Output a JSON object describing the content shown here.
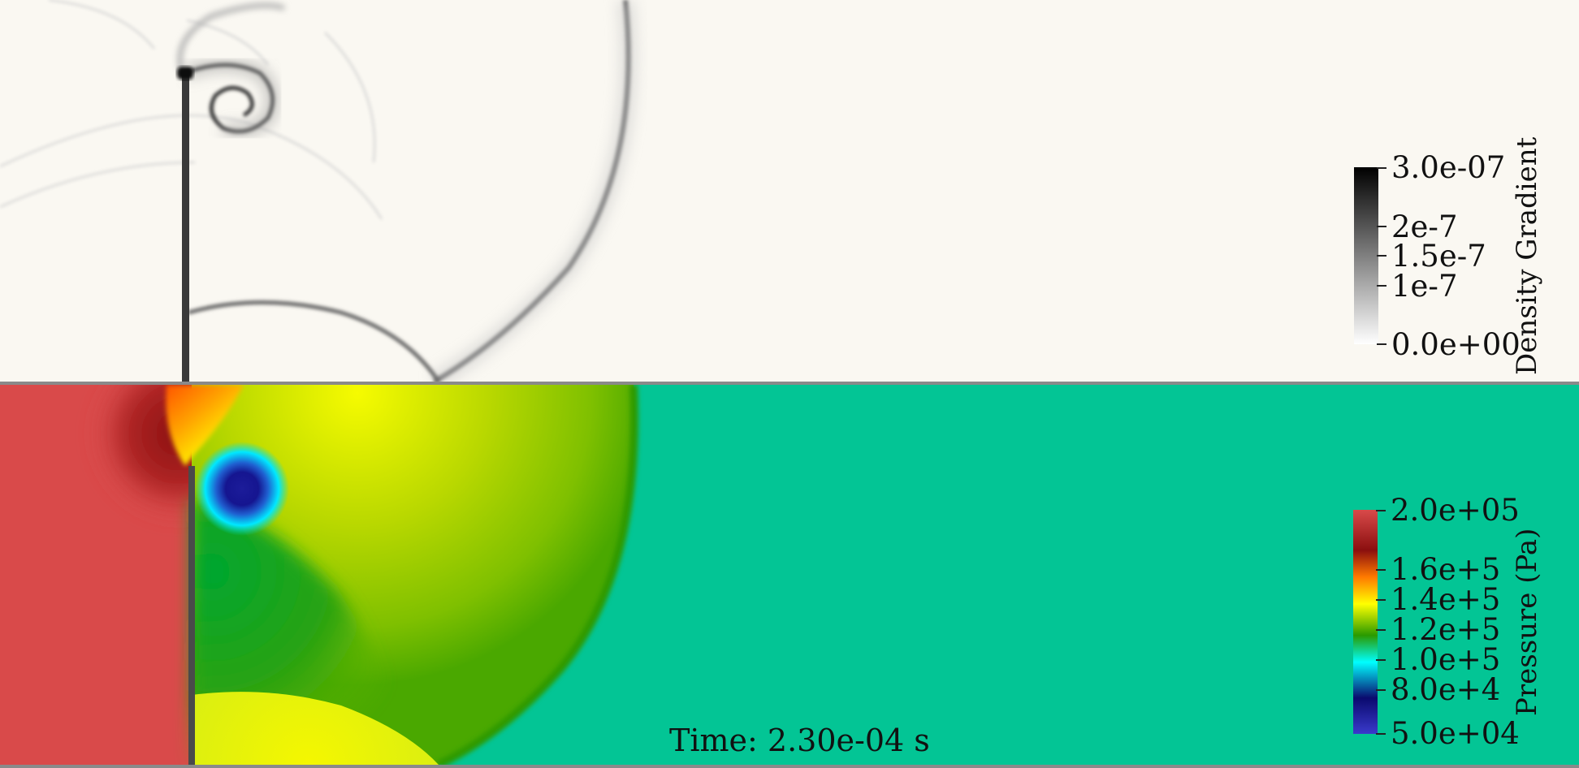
{
  "density_colorbar": {
    "title": "Density Gradient",
    "ticks": [
      "3.0e-07",
      "2e-7",
      "1.5e-7",
      "1e-7",
      "0.0e+00"
    ],
    "range": [
      0.0,
      3e-07
    ],
    "colormap": [
      "#000000",
      "#ffffff"
    ]
  },
  "pressure_colorbar": {
    "title": "Pressure (Pa)",
    "ticks": [
      "2.0e+05",
      "1.6e+5",
      "1.4e+5",
      "1.2e+5",
      "1.0e+5",
      "8.0e+4",
      "5.0e+04"
    ],
    "range": [
      50000,
      200000
    ],
    "colormap": [
      "#d94a4a",
      "#8b0f0f",
      "#ff7a00",
      "#ffff00",
      "#2a9a00",
      "#00ffff",
      "#0a0a6e",
      "#3a3acc"
    ]
  },
  "time_label": "Time: 2.30e-04 s"
}
